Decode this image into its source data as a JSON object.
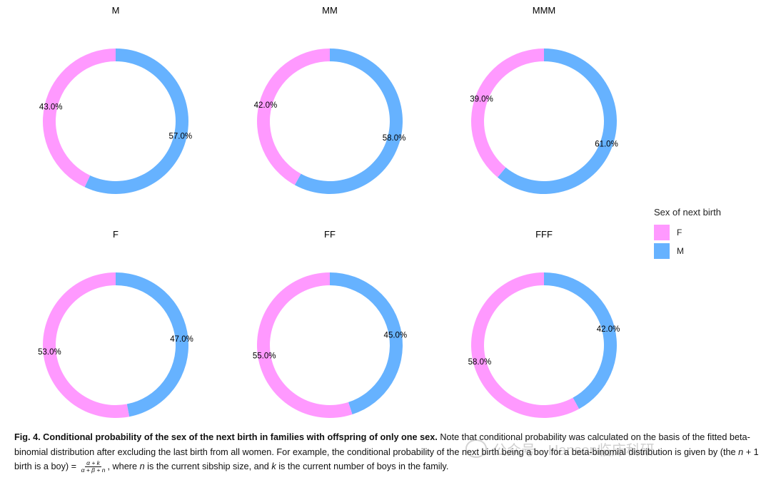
{
  "chart_data": {
    "type": "donut",
    "legend": {
      "title": "Sex of next birth",
      "placement": "right",
      "entries": [
        {
          "label": "F",
          "color": "#FF99FF"
        },
        {
          "label": "M",
          "color": "#66B2FF"
        }
      ]
    },
    "panels": [
      {
        "title": "M",
        "M": 57.0,
        "F": 43.0,
        "M_label": "57.0%",
        "F_label": "43.0%"
      },
      {
        "title": "MM",
        "M": 58.0,
        "F": 42.0,
        "M_label": "58.0%",
        "F_label": "42.0%"
      },
      {
        "title": "MMM",
        "M": 61.0,
        "F": 39.0,
        "M_label": "61.0%",
        "F_label": "39.0%"
      },
      {
        "title": "F",
        "M": 47.0,
        "F": 53.0,
        "M_label": "47.0%",
        "F_label": "53.0%"
      },
      {
        "title": "FF",
        "M": 45.0,
        "F": 55.0,
        "M_label": "45.0%",
        "F_label": "55.0%"
      },
      {
        "title": "FFF",
        "M": 42.0,
        "F": 58.0,
        "M_label": "42.0%",
        "F_label": "58.0%"
      }
    ]
  },
  "caption": {
    "bold": "Fig. 4. Conditional probability of the sex of the next birth in families with offspring of only one sex.",
    "text1": " Note that conditional probability was calculated on the basis of the fitted beta-binomial distribution after excluding the last birth from all women. For example, the conditional probability of the next birth being a boy for a beta-binomial distribution is given by (the ",
    "var_n1": "n",
    "text2": " + 1 birth is a boy) = ",
    "frac_num": "α + k",
    "frac_den": "α + β + n",
    "text3": ", where ",
    "var_n2": "n",
    "text4": " is the current sibship size, and ",
    "var_k": "k",
    "text5": " is the current number of boys in the family."
  },
  "watermark": {
    "text": "公众号 · Hanson临床科研"
  }
}
